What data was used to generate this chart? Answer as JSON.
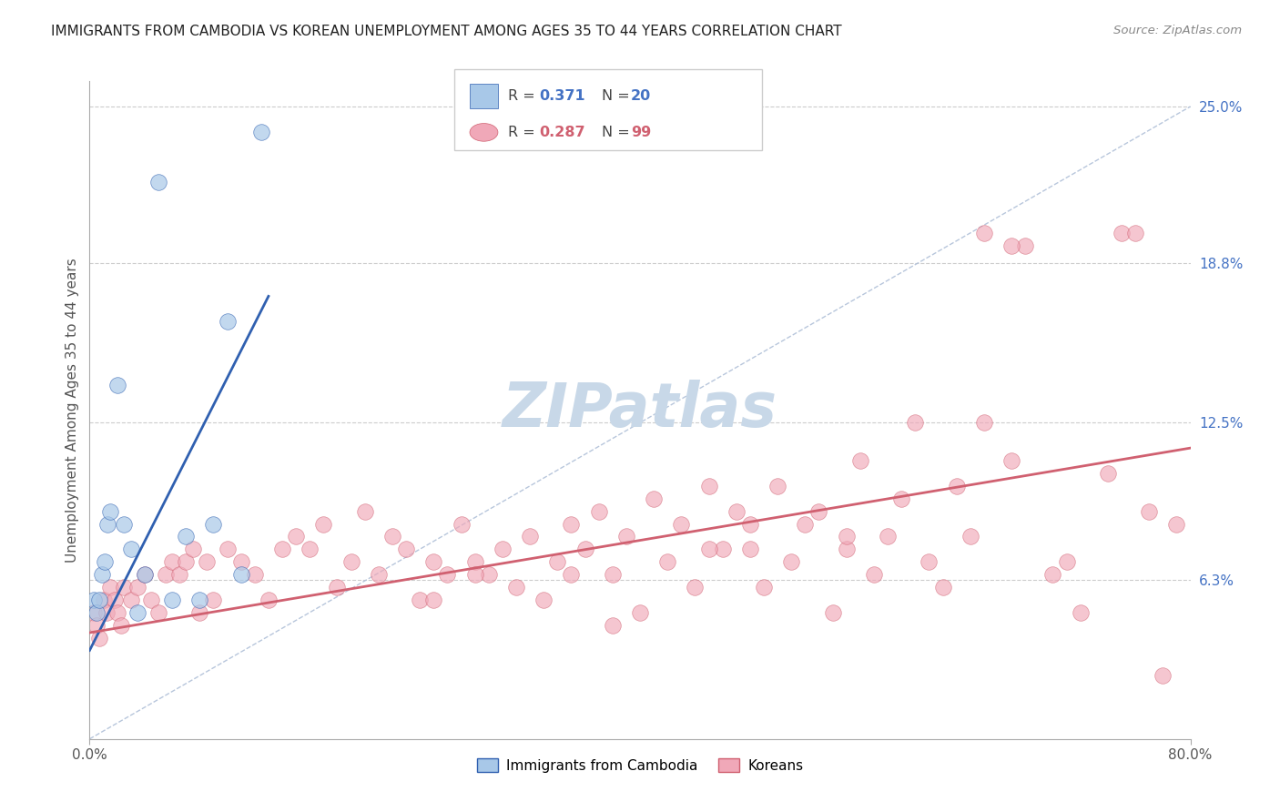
{
  "title": "IMMIGRANTS FROM CAMBODIA VS KOREAN UNEMPLOYMENT AMONG AGES 35 TO 44 YEARS CORRELATION CHART",
  "source": "Source: ZipAtlas.com",
  "ylabel": "Unemployment Among Ages 35 to 44 years",
  "xlim": [
    0,
    80
  ],
  "ylim": [
    0,
    26
  ],
  "yticks": [
    6.3,
    12.5,
    18.8,
    25.0
  ],
  "ytick_labels": [
    "6.3%",
    "12.5%",
    "18.8%",
    "25.0%"
  ],
  "xticks": [
    0,
    80
  ],
  "xtick_labels": [
    "0.0%",
    "80.0%"
  ],
  "blue_color": "#a8c8e8",
  "pink_color": "#f0a8b8",
  "blue_line_color": "#3060b0",
  "pink_line_color": "#d06070",
  "dashed_line_color": "#b0c0d8",
  "background_color": "#ffffff",
  "watermark_color": "#c8d8e8",
  "cambodia_x": [
    0.3,
    0.5,
    0.7,
    0.9,
    1.1,
    1.3,
    1.5,
    2.0,
    2.5,
    3.0,
    3.5,
    4.0,
    5.0,
    6.0,
    7.0,
    8.0,
    9.0,
    10.0,
    11.0,
    12.5
  ],
  "cambodia_y": [
    5.5,
    5.0,
    5.5,
    6.5,
    7.0,
    8.5,
    9.0,
    14.0,
    8.5,
    7.5,
    5.0,
    6.5,
    22.0,
    5.5,
    8.0,
    5.5,
    8.5,
    16.5,
    6.5,
    24.0
  ],
  "korean_x": [
    0.3,
    0.5,
    0.7,
    1.0,
    1.2,
    1.5,
    1.8,
    2.0,
    2.3,
    2.5,
    3.0,
    3.5,
    4.0,
    4.5,
    5.0,
    5.5,
    6.0,
    6.5,
    7.0,
    7.5,
    8.0,
    8.5,
    9.0,
    10.0,
    11.0,
    12.0,
    13.0,
    14.0,
    15.0,
    16.0,
    17.0,
    18.0,
    19.0,
    20.0,
    21.0,
    22.0,
    23.0,
    24.0,
    25.0,
    26.0,
    27.0,
    28.0,
    29.0,
    30.0,
    31.0,
    32.0,
    33.0,
    34.0,
    35.0,
    36.0,
    37.0,
    38.0,
    39.0,
    40.0,
    41.0,
    42.0,
    43.0,
    44.0,
    45.0,
    46.0,
    47.0,
    48.0,
    49.0,
    50.0,
    51.0,
    52.0,
    53.0,
    54.0,
    55.0,
    56.0,
    57.0,
    58.0,
    59.0,
    60.0,
    61.0,
    62.0,
    63.0,
    64.0,
    65.0,
    67.0,
    68.0,
    70.0,
    71.0,
    72.0,
    74.0,
    75.0,
    76.0,
    77.0,
    78.0,
    79.0,
    65.0,
    67.0,
    25.0,
    45.0,
    35.0,
    55.0,
    48.0,
    38.0,
    28.0
  ],
  "korean_y": [
    5.0,
    4.5,
    4.0,
    5.5,
    5.0,
    6.0,
    5.5,
    5.0,
    4.5,
    6.0,
    5.5,
    6.0,
    6.5,
    5.5,
    5.0,
    6.5,
    7.0,
    6.5,
    7.0,
    7.5,
    5.0,
    7.0,
    5.5,
    7.5,
    7.0,
    6.5,
    5.5,
    7.5,
    8.0,
    7.5,
    8.5,
    6.0,
    7.0,
    9.0,
    6.5,
    8.0,
    7.5,
    5.5,
    7.0,
    6.5,
    8.5,
    7.0,
    6.5,
    7.5,
    6.0,
    8.0,
    5.5,
    7.0,
    8.5,
    7.5,
    9.0,
    6.5,
    8.0,
    5.0,
    9.5,
    7.0,
    8.5,
    6.0,
    10.0,
    7.5,
    9.0,
    8.5,
    6.0,
    10.0,
    7.0,
    8.5,
    9.0,
    5.0,
    7.5,
    11.0,
    6.5,
    8.0,
    9.5,
    12.5,
    7.0,
    6.0,
    10.0,
    8.0,
    12.5,
    11.0,
    19.5,
    6.5,
    7.0,
    5.0,
    10.5,
    20.0,
    20.0,
    9.0,
    2.5,
    8.5,
    20.0,
    19.5,
    5.5,
    7.5,
    6.5,
    8.0,
    7.5,
    4.5,
    6.5
  ],
  "blue_reg_x0": 0,
  "blue_reg_y0": 3.5,
  "blue_reg_x1": 13,
  "blue_reg_y1": 17.5,
  "pink_reg_x0": 0,
  "pink_reg_y0": 4.2,
  "pink_reg_x1": 80,
  "pink_reg_y1": 11.5,
  "dash_x0": 0,
  "dash_y0": 0,
  "dash_x1": 80,
  "dash_y1": 25
}
